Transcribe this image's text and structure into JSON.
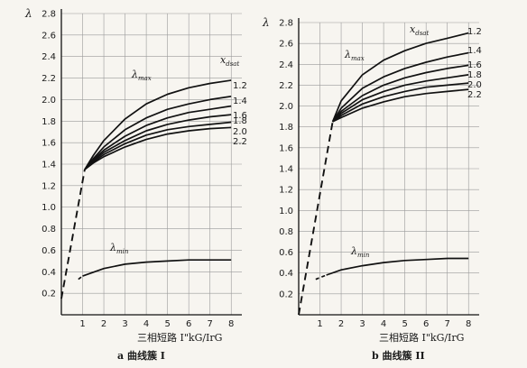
{
  "chart_data": [
    {
      "type": "line",
      "ylabel": "λ",
      "xlabel": "三相短路 I\"kG/IrG",
      "caption": "a  曲线簇 I",
      "xlim": [
        0,
        8.5
      ],
      "ylim": [
        0,
        2.8
      ],
      "xticks": [
        1,
        2,
        3,
        4,
        5,
        6,
        7,
        8
      ],
      "yticks": [
        0.2,
        0.4,
        0.6,
        0.8,
        1.0,
        1.2,
        1.4,
        1.6,
        1.8,
        2.0,
        2.2,
        2.4,
        2.6,
        2.8
      ],
      "series_label": "xdsat",
      "max_label": "λmax",
      "min_label": "λmin",
      "series": [
        {
          "name": "1.2",
          "x": [
            1.1,
            1.5,
            2,
            3,
            4,
            5,
            6,
            7,
            8
          ],
          "values": [
            1.35,
            1.48,
            1.62,
            1.82,
            1.96,
            2.05,
            2.11,
            2.15,
            2.18
          ]
        },
        {
          "name": "1.4",
          "x": [
            1.1,
            1.5,
            2,
            3,
            4,
            5,
            6,
            7,
            8
          ],
          "values": [
            1.35,
            1.45,
            1.56,
            1.72,
            1.83,
            1.91,
            1.96,
            2.0,
            2.03
          ]
        },
        {
          "name": "1.6",
          "x": [
            1.1,
            1.5,
            2,
            3,
            4,
            5,
            6,
            7,
            8
          ],
          "values": [
            1.35,
            1.44,
            1.53,
            1.66,
            1.76,
            1.83,
            1.88,
            1.91,
            1.94
          ]
        },
        {
          "name": "1.8",
          "x": [
            1.1,
            1.5,
            2,
            3,
            4,
            5,
            6,
            7,
            8
          ],
          "values": [
            1.35,
            1.43,
            1.51,
            1.62,
            1.71,
            1.77,
            1.81,
            1.84,
            1.86
          ]
        },
        {
          "name": "2.0",
          "x": [
            1.1,
            1.5,
            2,
            3,
            4,
            5,
            6,
            7,
            8
          ],
          "values": [
            1.35,
            1.42,
            1.49,
            1.59,
            1.67,
            1.72,
            1.75,
            1.77,
            1.79
          ]
        },
        {
          "name": "2.2",
          "x": [
            1.1,
            1.5,
            2,
            3,
            4,
            5,
            6,
            7,
            8
          ],
          "values": [
            1.35,
            1.41,
            1.47,
            1.56,
            1.63,
            1.68,
            1.71,
            1.73,
            1.74
          ]
        }
      ],
      "rise_dashed": {
        "x": [
          0,
          1.1
        ],
        "values": [
          0.15,
          1.35
        ]
      },
      "min_curve": {
        "x": [
          1,
          2,
          3,
          4,
          5,
          6,
          7,
          8
        ],
        "values": [
          0.36,
          0.43,
          0.47,
          0.49,
          0.5,
          0.51,
          0.51,
          0.51
        ]
      },
      "min_dashed": {
        "x": [
          0.8,
          1
        ],
        "values": [
          0.33,
          0.36
        ]
      }
    },
    {
      "type": "line",
      "ylabel": "λ",
      "xlabel": "三相短路 I\"kG/IrG",
      "caption": "b  曲线簇 II",
      "xlim": [
        0,
        8.5
      ],
      "ylim": [
        0,
        2.8
      ],
      "xticks": [
        1,
        2,
        3,
        4,
        5,
        6,
        7,
        8
      ],
      "yticks": [
        0.2,
        0.4,
        0.6,
        0.8,
        1.0,
        1.2,
        1.4,
        1.6,
        1.8,
        2.0,
        2.2,
        2.4,
        2.6,
        2.8
      ],
      "series_label": "xdsat",
      "max_label": "λmax",
      "min_label": "λmin",
      "series": [
        {
          "name": "1.2",
          "x": [
            1.6,
            2,
            3,
            4,
            5,
            6,
            7,
            8
          ],
          "values": [
            1.85,
            2.05,
            2.3,
            2.44,
            2.53,
            2.6,
            2.65,
            2.7
          ]
        },
        {
          "name": "1.4",
          "x": [
            1.6,
            2,
            3,
            4,
            5,
            6,
            7,
            8
          ],
          "values": [
            1.85,
            1.98,
            2.17,
            2.28,
            2.36,
            2.42,
            2.47,
            2.51
          ]
        },
        {
          "name": "1.6",
          "x": [
            1.6,
            2,
            3,
            4,
            5,
            6,
            7,
            8
          ],
          "values": [
            1.85,
            1.95,
            2.1,
            2.2,
            2.27,
            2.32,
            2.36,
            2.39
          ]
        },
        {
          "name": "1.8",
          "x": [
            1.6,
            2,
            3,
            4,
            5,
            6,
            7,
            8
          ],
          "values": [
            1.85,
            1.93,
            2.06,
            2.14,
            2.2,
            2.24,
            2.27,
            2.3
          ]
        },
        {
          "name": "2.0",
          "x": [
            1.6,
            2,
            3,
            4,
            5,
            6,
            7,
            8
          ],
          "values": [
            1.85,
            1.91,
            2.02,
            2.09,
            2.14,
            2.18,
            2.2,
            2.22
          ]
        },
        {
          "name": "2.2",
          "x": [
            1.6,
            2,
            3,
            4,
            5,
            6,
            7,
            8
          ],
          "values": [
            1.85,
            1.89,
            1.98,
            2.04,
            2.09,
            2.12,
            2.14,
            2.16
          ]
        }
      ],
      "rise_dashed": {
        "x": [
          0,
          1.6
        ],
        "values": [
          0.0,
          1.85
        ]
      },
      "min_curve": {
        "x": [
          1.3,
          2,
          3,
          4,
          5,
          6,
          7,
          8
        ],
        "values": [
          0.38,
          0.43,
          0.47,
          0.5,
          0.52,
          0.53,
          0.54,
          0.54
        ]
      },
      "min_dashed": {
        "x": [
          0.8,
          1.3
        ],
        "values": [
          0.34,
          0.38
        ]
      }
    }
  ]
}
